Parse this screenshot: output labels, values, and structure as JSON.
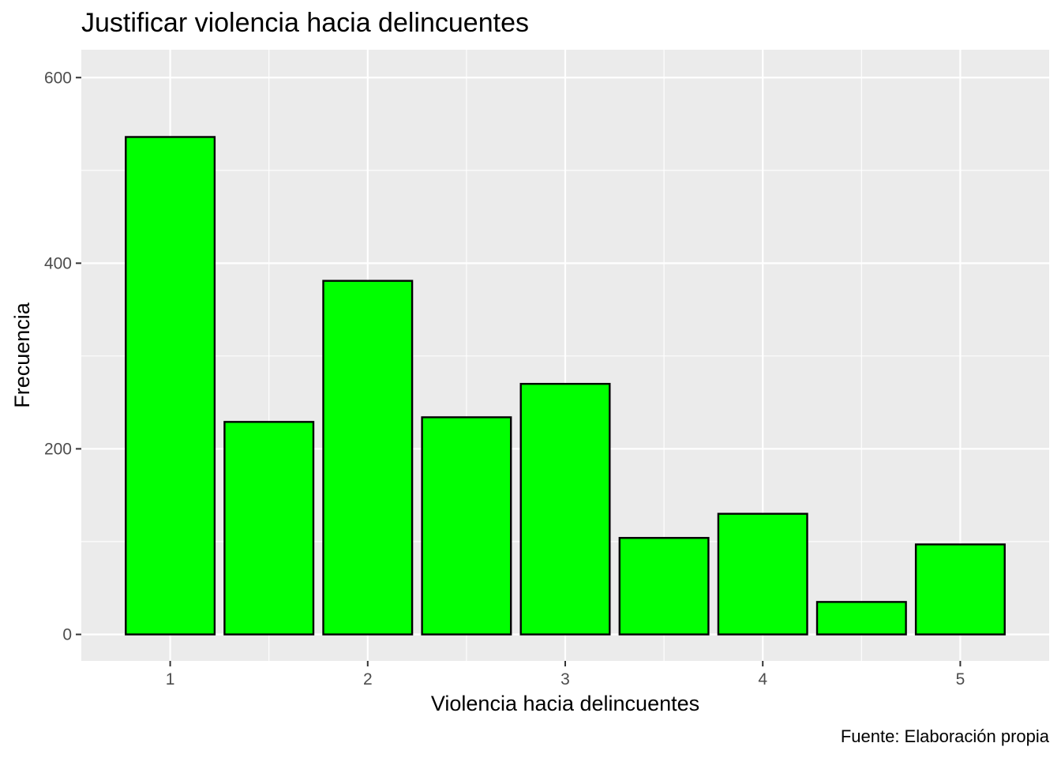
{
  "chart_data": {
    "type": "bar",
    "title": "Justificar violencia hacia delincuentes",
    "xlabel": "Violencia hacia delincuentes",
    "ylabel": "Frecuencia",
    "caption": "Fuente: Elaboración propia",
    "x": [
      1,
      1.5,
      2,
      2.5,
      3,
      3.5,
      4,
      4.5,
      5
    ],
    "values": [
      536,
      229,
      381,
      234,
      270,
      104,
      130,
      35,
      97
    ],
    "bar_width": 0.45,
    "xlim": [
      0.55,
      5.45
    ],
    "ylim": [
      -28.5,
      630
    ],
    "x_ticks": [
      1,
      2,
      3,
      4,
      5
    ],
    "x_tick_labels": [
      "1",
      "2",
      "3",
      "4",
      "5"
    ],
    "y_ticks": [
      0,
      200,
      400,
      600
    ],
    "y_tick_labels": [
      "0",
      "200",
      "400",
      "600"
    ],
    "y_minor_ticks": [
      100,
      300,
      500
    ],
    "x_minor_ticks": [
      1.5,
      2.5,
      3.5,
      4.5
    ],
    "grid": true,
    "colors": {
      "bar_fill": "#00FF00",
      "bar_stroke": "#000000",
      "panel_bg": "#EBEBEB",
      "grid": "#FFFFFF",
      "tick_text": "#4D4D4D"
    }
  }
}
